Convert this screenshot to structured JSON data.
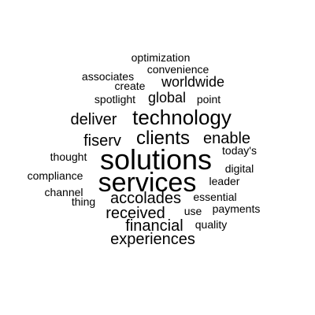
{
  "words": {
    "solutions": "solutions",
    "services": "services",
    "technology": "technology",
    "clients": "clients",
    "enable": "enable",
    "deliver": "deliver",
    "fiserv": "fiserv",
    "accolades": "accolades",
    "received": "received",
    "financial": "financial",
    "experiences": "experiences",
    "worldwide": "worldwide",
    "global": "global",
    "optimization": "optimization",
    "convenience": "convenience",
    "associates": "associates",
    "create": "create",
    "spotlight": "spotlight",
    "point": "point",
    "todays": "today's",
    "thought": "thought",
    "digital": "digital",
    "compliance": "compliance",
    "leader": "leader",
    "channel": "channel",
    "essential": "essential",
    "thing": "thing",
    "use": "use",
    "payments": "payments",
    "quality": "quality"
  },
  "colors": {
    "background": "#ffffff",
    "text": "#000000"
  }
}
